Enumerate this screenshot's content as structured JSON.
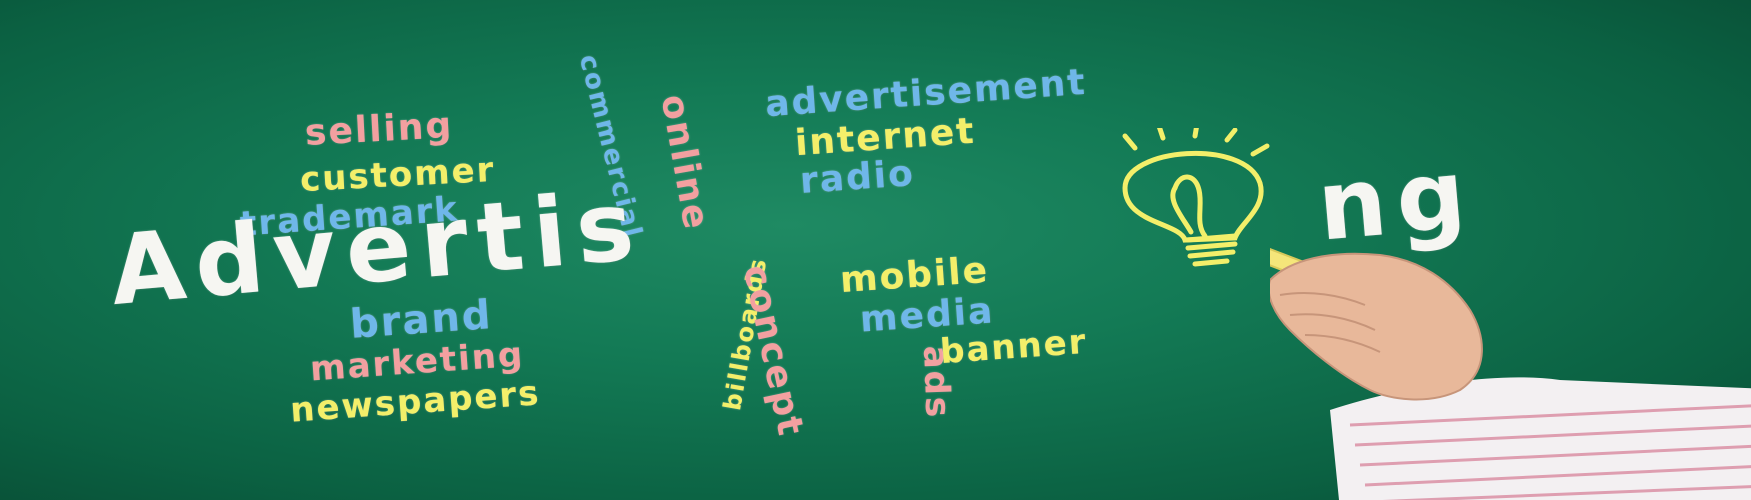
{
  "words": {
    "selling": "selling",
    "customer": "customer",
    "trademark": "trademark",
    "commercial": "commercial",
    "online": "online",
    "advertisement": "advertisement",
    "internet": "internet",
    "radio": "radio",
    "headline_a": "Advertis",
    "headline_b": "ng",
    "brand": "brand",
    "marketing": "marketing",
    "newspapers": "newspapers",
    "billboards": "billboards",
    "concept": "concept",
    "ads": "ads",
    "mobile": "mobile",
    "media": "media",
    "banner": "banner"
  },
  "colors": {
    "board": "#137a55",
    "pink": "#f2a0a0",
    "yellow": "#f3ef6a",
    "blue": "#6fb7e9",
    "white": "#f6f6f2"
  },
  "icons": {
    "bulb": "lightbulb-icon",
    "hand": "hand-holding-chalk"
  }
}
